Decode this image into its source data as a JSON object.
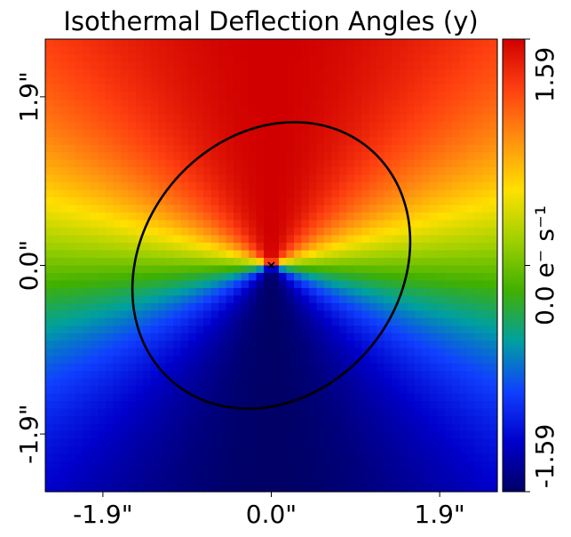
{
  "chart_data": {
    "type": "heatmap",
    "title": "Isothermal Deflection Angles (y)",
    "xlabel": "",
    "ylabel": "",
    "xlim": [
      -2.55,
      2.55
    ],
    "ylim": [
      -2.55,
      2.55
    ],
    "x_ticks": [
      {
        "value": -1.9,
        "label": "-1.9\""
      },
      {
        "value": 0.0,
        "label": "0.0\""
      },
      {
        "value": 1.9,
        "label": "1.9\""
      }
    ],
    "y_ticks": [
      {
        "value": -1.9,
        "label": "-1.9\""
      },
      {
        "value": 0.0,
        "label": "0.0\""
      },
      {
        "value": 1.9,
        "label": "1.9\""
      }
    ],
    "colorbar": {
      "min": -1.59,
      "max": 1.59,
      "labels": [
        {
          "value": 1.59,
          "text": "1.59"
        },
        {
          "value": 0.0,
          "text": "0.0 e⁻ s⁻¹"
        },
        {
          "value": -1.59,
          "text": "-1.59"
        }
      ],
      "colormap": [
        "#000066",
        "#0000cc",
        "#1040ff",
        "#00a0a0",
        "#40b000",
        "#a0d000",
        "#ffe000",
        "#ff9010",
        "#ff4010",
        "#d00000"
      ]
    },
    "critical_curve": {
      "center": [
        0.0,
        0.0
      ],
      "semi_major": 1.72,
      "semi_minor": 1.45,
      "angle_deg": 50,
      "color": "#000000"
    },
    "center_marker": {
      "x": 0.0,
      "y": 0.0,
      "symbol": "x"
    },
    "field": {
      "grid": [
        60,
        60
      ],
      "amplitude": 1.59,
      "description_axis_ratio": 0.8
    }
  }
}
